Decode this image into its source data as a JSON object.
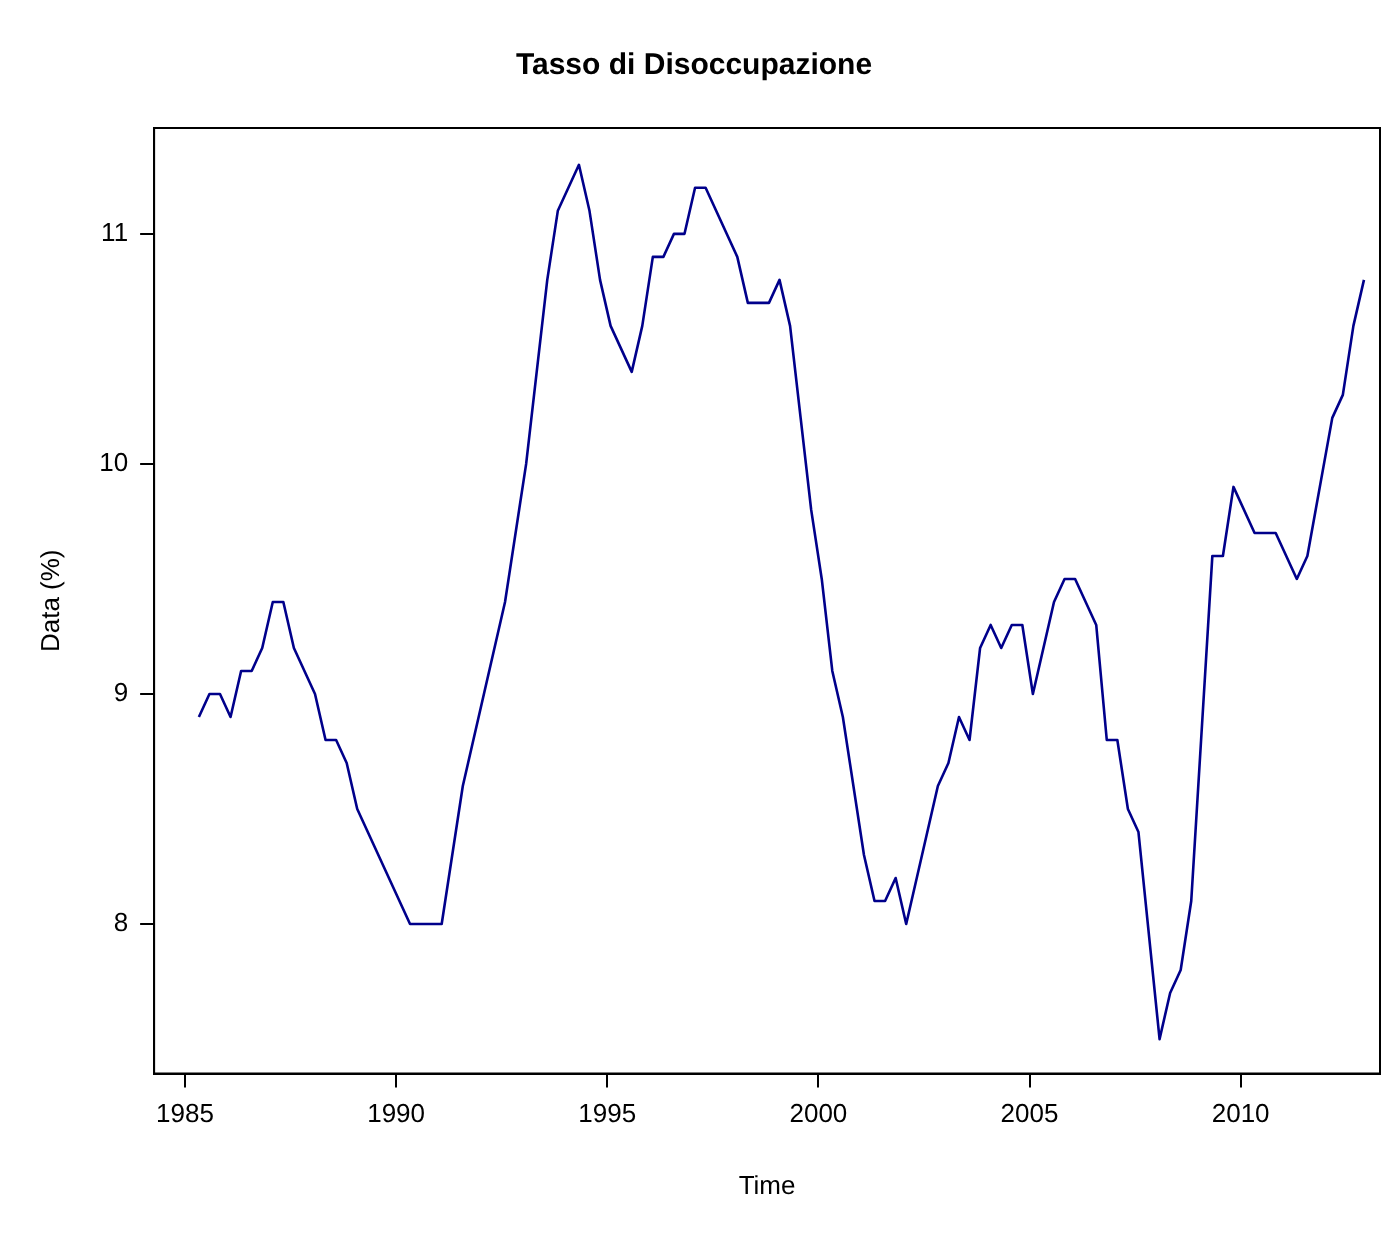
{
  "chart_data": {
    "type": "line",
    "title": "Tasso di Disoccupazione",
    "xlabel": "Time",
    "ylabel": "Data (%)",
    "grid": false,
    "legend": false,
    "marker": "none",
    "line_style": "solid",
    "xlim": [
      1984.27,
      2013.3
    ],
    "xticks": [
      1985,
      1990,
      1995,
      2000,
      2005,
      2010
    ],
    "ylim": [
      7.35,
      11.46
    ],
    "yticks": [
      8,
      9,
      10,
      11
    ],
    "series": [
      {
        "color": "#00008b",
        "x": [
          1985.33,
          1985.58,
          1985.83,
          1986.08,
          1986.33,
          1986.58,
          1986.83,
          1987.08,
          1987.33,
          1987.58,
          1988.08,
          1988.33,
          1988.58,
          1988.83,
          1989.08,
          1990.33,
          1991.08,
          1991.58,
          1992.58,
          1993.08,
          1993.58,
          1993.83,
          1994.33,
          1994.58,
          1994.83,
          1995.08,
          1995.58,
          1995.83,
          1996.08,
          1996.33,
          1996.58,
          1996.83,
          1997.08,
          1997.33,
          1998.08,
          1998.33,
          1998.83,
          1999.08,
          1999.33,
          1999.58,
          1999.83,
          2000.08,
          2000.33,
          2000.58,
          2001.08,
          2001.33,
          2001.58,
          2001.83,
          2002.08,
          2002.83,
          2003.08,
          2003.33,
          2003.58,
          2003.83,
          2004.08,
          2004.33,
          2004.58,
          2004.83,
          2005.08,
          2005.58,
          2005.83,
          2006.08,
          2006.58,
          2006.83,
          2007.08,
          2007.33,
          2007.58,
          2008.08,
          2008.33,
          2008.58,
          2008.83,
          2009.33,
          2009.58,
          2009.83,
          2010.33,
          2010.83,
          2011.33,
          2011.58,
          2012.17,
          2012.42,
          2012.67,
          2012.92
        ],
        "values": [
          8.9,
          9.0,
          9.0,
          8.9,
          9.1,
          9.1,
          9.2,
          9.4,
          9.4,
          9.2,
          9.0,
          8.8,
          8.8,
          8.7,
          8.5,
          8.0,
          8.0,
          8.6,
          9.4,
          10.0,
          10.8,
          11.1,
          11.3,
          11.1,
          10.8,
          10.6,
          10.4,
          10.6,
          10.9,
          10.9,
          11.0,
          11.0,
          11.2,
          11.2,
          10.9,
          10.7,
          10.7,
          10.8,
          10.6,
          10.2,
          9.8,
          9.5,
          9.1,
          8.9,
          8.3,
          8.1,
          8.1,
          8.2,
          8.0,
          8.6,
          8.7,
          8.9,
          8.8,
          9.2,
          9.3,
          9.2,
          9.3,
          9.3,
          9.0,
          9.4,
          9.5,
          9.5,
          9.3,
          8.8,
          8.8,
          8.5,
          8.4,
          7.5,
          7.7,
          7.8,
          8.1,
          9.6,
          9.6,
          9.9,
          9.7,
          9.7,
          9.5,
          9.6,
          10.2,
          10.3,
          10.6,
          10.8
        ]
      }
    ]
  }
}
